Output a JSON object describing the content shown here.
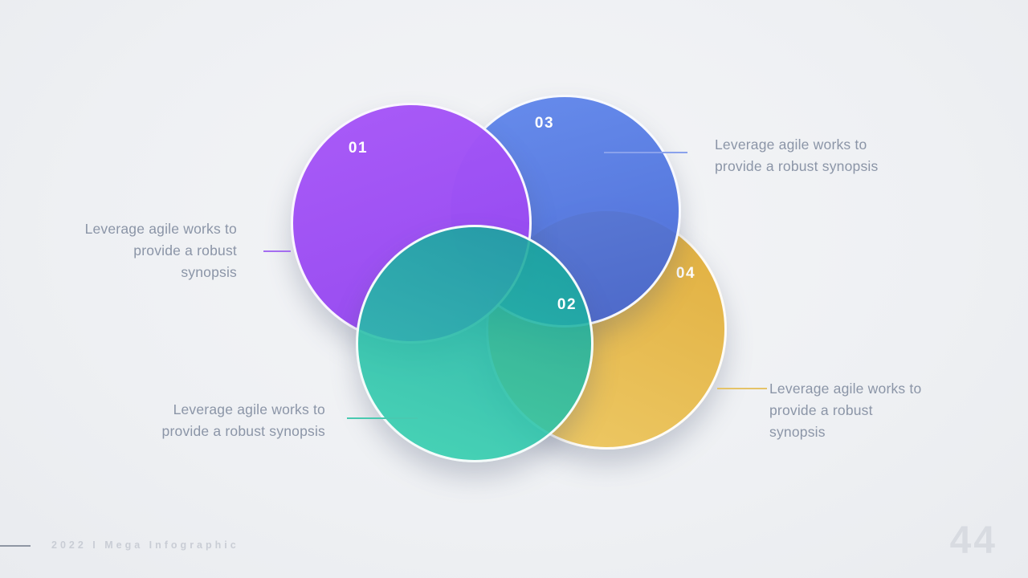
{
  "slide": {
    "background_color": "#eef0f3"
  },
  "venn": {
    "circles": [
      {
        "id": "01",
        "label": "01",
        "color": "#9b51f5",
        "caption": "Leverage agile works to provide a robust synopsis"
      },
      {
        "id": "02",
        "label": "02",
        "color": "#1fb5a3",
        "caption": "Leverage agile works to provide a robust synopsis"
      },
      {
        "id": "03",
        "label": "03",
        "color": "#4d74e0",
        "caption": "Leverage agile works to provide a robust synopsis"
      },
      {
        "id": "04",
        "label": "04",
        "color": "#e8bc4a",
        "caption": "Leverage agile works to provide a robust synopsis"
      }
    ]
  },
  "footer": {
    "credit": "2022 I Mega Infographic",
    "page_number": "44"
  }
}
